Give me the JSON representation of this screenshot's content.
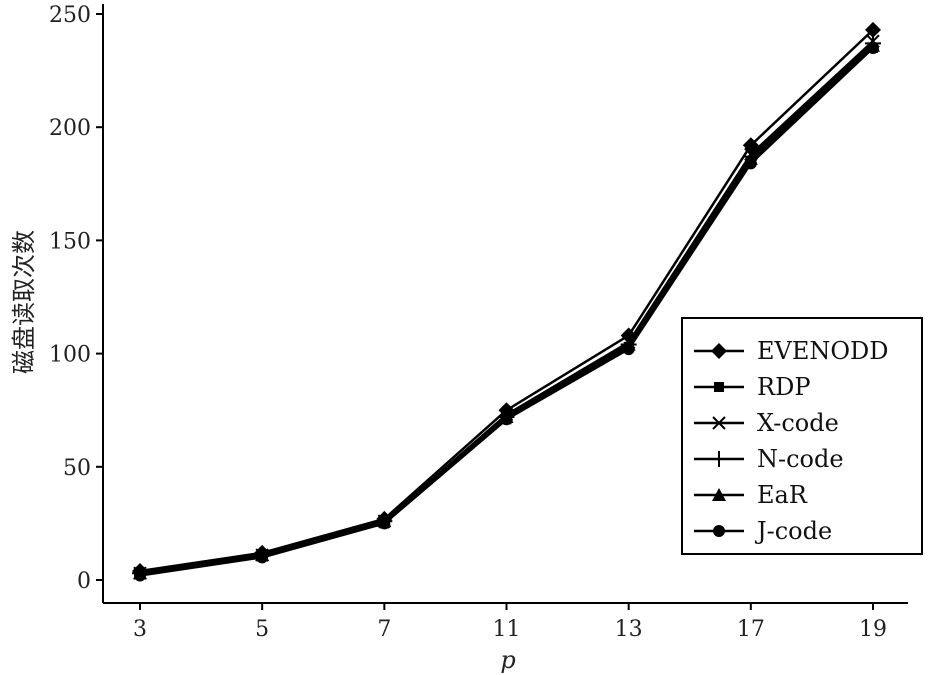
{
  "chart_data": {
    "type": "line",
    "title": "",
    "xlabel": "p",
    "ylabel": "磁盘读取次数",
    "categories": [
      "3",
      "5",
      "7",
      "11",
      "13",
      "17",
      "19"
    ],
    "ylim": [
      0,
      250
    ],
    "yticks": [
      0,
      50,
      100,
      150,
      200,
      250
    ],
    "grid": false,
    "legend_position": "right",
    "series": [
      {
        "name": "EVENODD",
        "marker": "diamond",
        "values": [
          4,
          12,
          27,
          75,
          108,
          192,
          243
        ]
      },
      {
        "name": "RDP",
        "marker": "square",
        "values": [
          3,
          11,
          25,
          71,
          103,
          185,
          235
        ]
      },
      {
        "name": "X-code",
        "marker": "x",
        "values": [
          3,
          11,
          26,
          73,
          105,
          188,
          238
        ]
      },
      {
        "name": "N-code",
        "marker": "plus",
        "values": [
          3,
          11,
          26,
          72,
          104,
          187,
          237
        ]
      },
      {
        "name": "EaR",
        "marker": "triangle",
        "values": [
          3,
          11,
          26,
          72,
          104,
          186,
          236
        ]
      },
      {
        "name": "J-code",
        "marker": "circle",
        "values": [
          2,
          10,
          25,
          71,
          102,
          184,
          235
        ]
      }
    ],
    "colors": {
      "line": "#000000",
      "axis": "#000000"
    }
  }
}
